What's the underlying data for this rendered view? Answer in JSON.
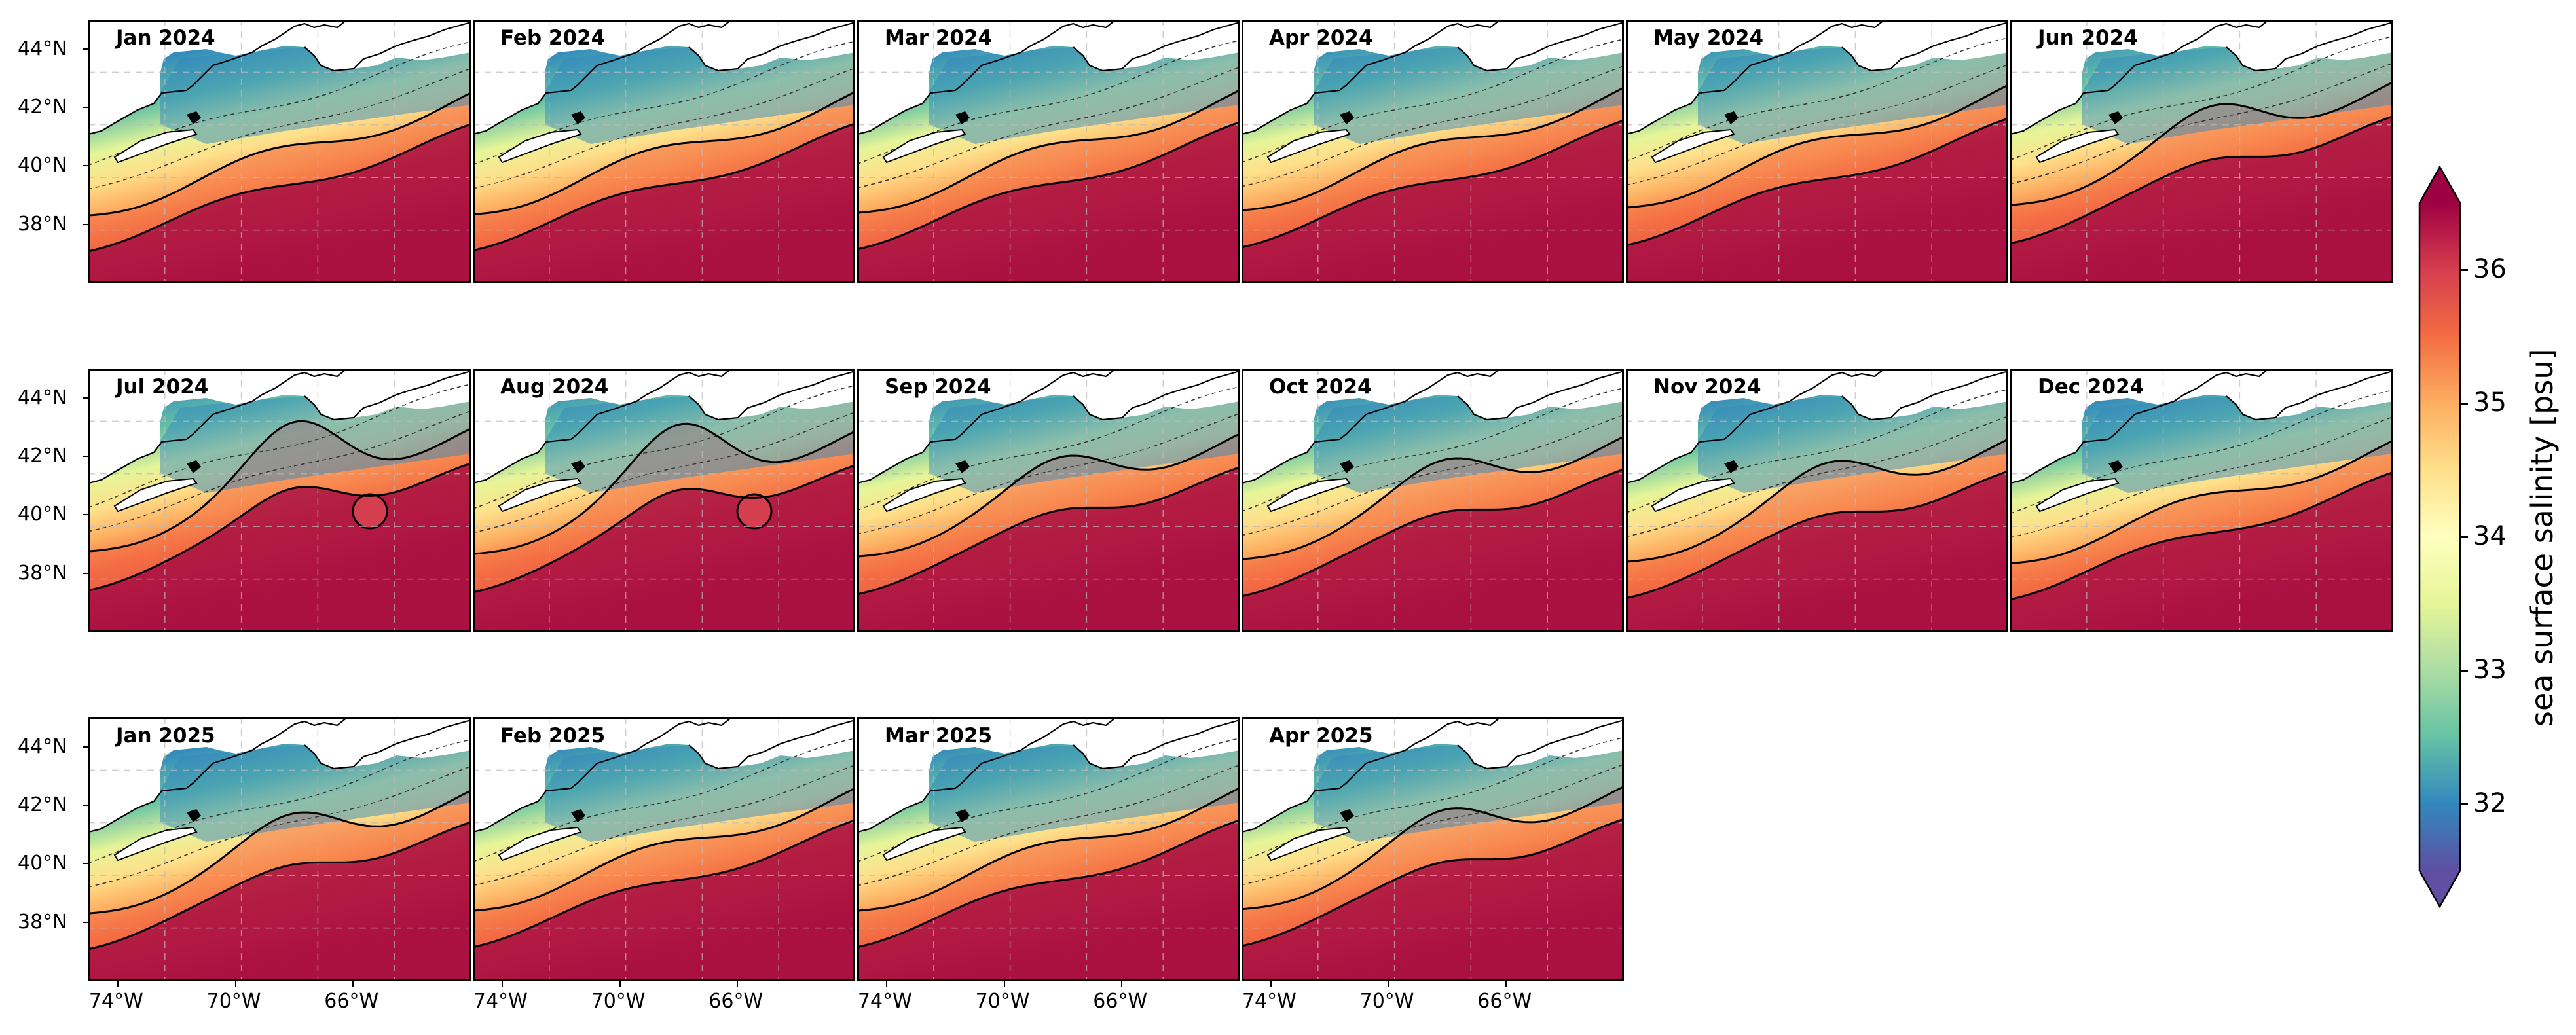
{
  "panels": [
    {
      "title": "Jan 2024",
      "eddy": 0,
      "shift": 0
    },
    {
      "title": "Feb 2024",
      "eddy": 0,
      "shift": 0.02
    },
    {
      "title": "Mar 2024",
      "eddy": 0,
      "shift": 0.05
    },
    {
      "title": "Apr 2024",
      "eddy": 0,
      "shift": 0.1
    },
    {
      "title": "May 2024",
      "eddy": 0,
      "shift": 0.15
    },
    {
      "title": "Jun 2024",
      "eddy": 1,
      "shift": 0.2
    },
    {
      "title": "Jul 2024",
      "eddy": 2,
      "shift": 0.25
    },
    {
      "title": "Aug 2024",
      "eddy": 2,
      "shift": 0.2
    },
    {
      "title": "Sep 2024",
      "eddy": 1,
      "shift": 0.15
    },
    {
      "title": "Oct 2024",
      "eddy": 1,
      "shift": 0.1
    },
    {
      "title": "Nov 2024",
      "eddy": 1,
      "shift": 0.05
    },
    {
      "title": "Dec 2024",
      "eddy": 0,
      "shift": 0.02
    },
    {
      "title": "Jan 2025",
      "eddy": 1,
      "shift": 0
    },
    {
      "title": "Feb 2025",
      "eddy": 0,
      "shift": 0.05
    },
    {
      "title": "Mar 2025",
      "eddy": 0,
      "shift": 0.05
    },
    {
      "title": "Apr 2025",
      "eddy": 1,
      "shift": 0.08
    }
  ],
  "latitude_labels": [
    "44°N",
    "42°N",
    "40°N",
    "38°N"
  ],
  "latitude_values": [
    44,
    42,
    40,
    38
  ],
  "longitude_labels": [
    "74°W",
    "70°W",
    "66°W"
  ],
  "longitude_values": [
    -74,
    -70,
    -66
  ],
  "map_extent": {
    "lon_min": -75,
    "lon_max": -62,
    "lat_min": 36,
    "lat_max": 45
  },
  "colorbar": {
    "title": "sea surface salinity [psu]",
    "min": 31.5,
    "max": 36.5,
    "ticks": [
      32,
      33,
      34,
      35,
      36
    ],
    "tick_labels": [
      "32",
      "33",
      "34",
      "35",
      "36"
    ],
    "extend": "both",
    "colormap": "Spectral_r",
    "colors": [
      "#5e4fa2",
      "#3288bd",
      "#66c2a5",
      "#abdda4",
      "#e6f598",
      "#ffffbf",
      "#fee08b",
      "#fdae61",
      "#f46d43",
      "#d53e4f",
      "#9e0142"
    ]
  },
  "contour_styles": {
    "solid": "#000000",
    "dashed": "#333333"
  }
}
